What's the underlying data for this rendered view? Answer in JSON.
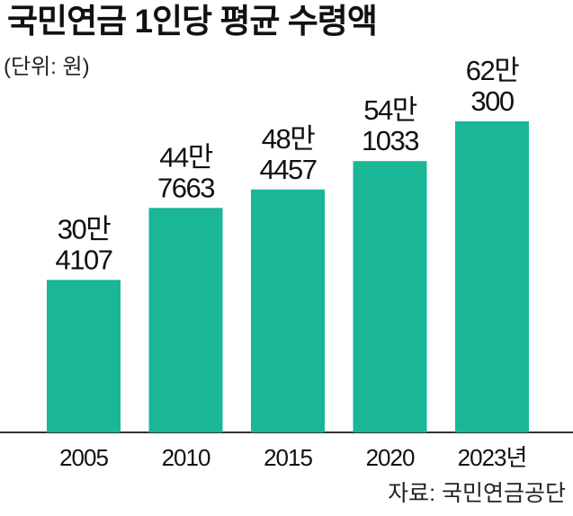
{
  "title": "국민연금 1인당 평균 수령액",
  "unit_note": "(단위: 원)",
  "source": "자료: 국민연금공단",
  "colors": {
    "bar": "#19b796",
    "axis": "#333333",
    "text": "#111111"
  },
  "chart_data": {
    "type": "bar",
    "title": "국민연금 1인당 평균 수령액",
    "unit": "(단위: 원)",
    "categories": [
      "2005",
      "2010",
      "2015",
      "2020",
      "2023년"
    ],
    "values": [
      304107,
      447663,
      484457,
      541033,
      620300
    ],
    "value_labels": [
      [
        "30만",
        "4107"
      ],
      [
        "44만",
        "7663"
      ],
      [
        "48만",
        "4457"
      ],
      [
        "54만",
        "1033"
      ],
      [
        "62만",
        "300"
      ]
    ],
    "grid": false,
    "legend": "none"
  }
}
